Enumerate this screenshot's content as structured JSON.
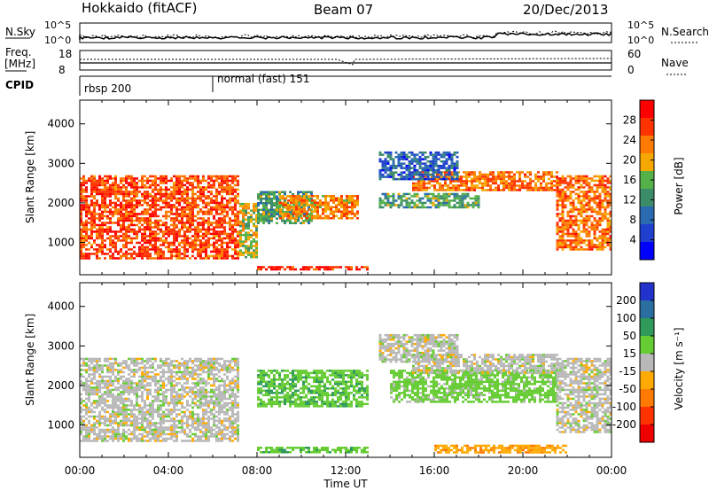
{
  "header": {
    "station": "Hokkaido (fitACF)",
    "beam": "Beam 07",
    "date": "20/Dec/2013"
  },
  "top_panels": {
    "nsky_label": "N.Sky",
    "nsky_ticks": [
      "10^5",
      "10^0"
    ],
    "nsearch_label": "N.Search",
    "freq_label_1": "Freq.",
    "freq_label_2": "[MHz]",
    "freq_ticks": [
      "18",
      "8"
    ],
    "nave_label": "Nave",
    "nave_ticks": [
      "60",
      "0"
    ],
    "cpid_label": "CPID",
    "cpid_segments": [
      "rbsp 200",
      "normal (fast) 151"
    ]
  },
  "colors": {
    "power": [
      "#0000ff",
      "#1f3fcf",
      "#2a6ab0",
      "#3c8c6a",
      "#55b04a",
      "#f5a800",
      "#ff7a00",
      "#ff3300",
      "#ff0000"
    ],
    "velocity": [
      "#2233cc",
      "#2b6fa0",
      "#2f9a5a",
      "#66cc33",
      "#b8b8b8",
      "#ffaa00",
      "#ff7a00",
      "#ff3300",
      "#ee0000"
    ]
  },
  "chart_data": [
    {
      "type": "heatmap",
      "title": "Power",
      "xlabel": "",
      "ylabel": "Slant Range [km]",
      "x_ticks": [
        "00:00",
        "04:00",
        "08:00",
        "12:00",
        "16:00",
        "20:00",
        "00:00"
      ],
      "y_ticks": [
        1000,
        2000,
        3000,
        4000
      ],
      "ylim": [
        180,
        4600
      ],
      "colorbar_label": "Power [dB]",
      "colorbar_ticks": [
        4,
        8,
        12,
        16,
        20,
        24,
        28
      ],
      "colorbar_range": [
        0,
        32
      ],
      "regions": [
        {
          "t": [
            0.0,
            7.2
          ],
          "r": [
            600,
            2700
          ],
          "value": 26
        },
        {
          "t": [
            7.2,
            8.0
          ],
          "r": [
            600,
            2000
          ],
          "value": 18
        },
        {
          "t": [
            8.0,
            10.5
          ],
          "r": [
            1500,
            2300
          ],
          "value": 14
        },
        {
          "t": [
            9.0,
            12.5
          ],
          "r": [
            1600,
            2200
          ],
          "value": 22
        },
        {
          "t": [
            8.0,
            13.0
          ],
          "r": [
            300,
            400
          ],
          "value": 28
        },
        {
          "t": [
            13.5,
            18.0
          ],
          "r": [
            1900,
            2250
          ],
          "value": 14
        },
        {
          "t": [
            15.0,
            21.5
          ],
          "r": [
            2300,
            2800
          ],
          "value": 24
        },
        {
          "t": [
            13.5,
            17.0
          ],
          "r": [
            2600,
            3300
          ],
          "value": 8
        },
        {
          "t": [
            21.5,
            24.0
          ],
          "r": [
            800,
            2700
          ],
          "value": 24
        }
      ]
    },
    {
      "type": "heatmap",
      "title": "Velocity",
      "xlabel": "Time UT",
      "ylabel": "Slant Range [km]",
      "x_ticks": [
        "00:00",
        "04:00",
        "08:00",
        "12:00",
        "16:00",
        "20:00",
        "00:00"
      ],
      "y_ticks": [
        1000,
        2000,
        3000,
        4000
      ],
      "ylim": [
        180,
        4600
      ],
      "colorbar_label": "Velocity [m s⁻¹]",
      "colorbar_ticks": [
        "200",
        "100",
        "50",
        "15",
        "-15",
        "-50",
        "-100",
        "-200"
      ],
      "regions": [
        {
          "t": [
            0.0,
            7.2
          ],
          "r": [
            600,
            2700
          ],
          "value": 0
        },
        {
          "t": [
            8.0,
            13.0
          ],
          "r": [
            1500,
            2400
          ],
          "value": 40
        },
        {
          "t": [
            8.0,
            13.0
          ],
          "r": [
            300,
            450
          ],
          "value": 40
        },
        {
          "t": [
            13.5,
            17.0
          ],
          "r": [
            2600,
            3300
          ],
          "value": 0
        },
        {
          "t": [
            14.0,
            21.5
          ],
          "r": [
            1600,
            2400
          ],
          "value": 30
        },
        {
          "t": [
            15.0,
            21.5
          ],
          "r": [
            2300,
            2800
          ],
          "value": 0
        },
        {
          "t": [
            21.5,
            24.0
          ],
          "r": [
            800,
            2700
          ],
          "value": 0
        },
        {
          "t": [
            16.0,
            22.0
          ],
          "r": [
            300,
            500
          ],
          "value": -40
        }
      ]
    }
  ]
}
